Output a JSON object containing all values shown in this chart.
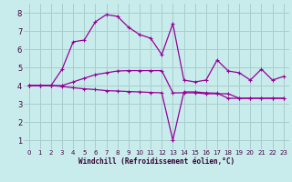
{
  "xlabel": "Windchill (Refroidissement éolien,°C)",
  "ylabel": "",
  "background_color": "#c8ecec",
  "grid_color": "#aacccc",
  "line_color": "#990099",
  "x": [
    0,
    1,
    2,
    3,
    4,
    5,
    6,
    7,
    8,
    9,
    10,
    11,
    12,
    13,
    14,
    15,
    16,
    17,
    18,
    19,
    20,
    21,
    22,
    23
  ],
  "line1": [
    4.0,
    4.0,
    4.0,
    4.9,
    6.4,
    6.5,
    7.5,
    7.9,
    7.8,
    7.2,
    6.8,
    6.6,
    5.7,
    7.4,
    4.3,
    4.2,
    4.3,
    5.4,
    4.8,
    4.7,
    4.3,
    4.9,
    4.3,
    4.5
  ],
  "line2": [
    4.0,
    4.0,
    4.0,
    4.0,
    4.2,
    4.4,
    4.6,
    4.7,
    4.8,
    4.82,
    4.82,
    4.82,
    4.82,
    3.6,
    3.6,
    3.6,
    3.55,
    3.55,
    3.55,
    3.3,
    3.3,
    3.3,
    3.3,
    3.3
  ],
  "line3": [
    4.0,
    4.0,
    4.0,
    3.95,
    3.88,
    3.82,
    3.78,
    3.72,
    3.7,
    3.67,
    3.65,
    3.62,
    3.6,
    1.0,
    3.65,
    3.65,
    3.6,
    3.58,
    3.3,
    3.3,
    3.3,
    3.3,
    3.3,
    3.3
  ],
  "ylim": [
    0.5,
    8.5
  ],
  "xlim": [
    -0.5,
    23.5
  ],
  "yticks": [
    1,
    2,
    3,
    4,
    5,
    6,
    7,
    8
  ],
  "xticks": [
    0,
    1,
    2,
    3,
    4,
    5,
    6,
    7,
    8,
    9,
    10,
    11,
    12,
    13,
    14,
    15,
    16,
    17,
    18,
    19,
    20,
    21,
    22,
    23
  ]
}
